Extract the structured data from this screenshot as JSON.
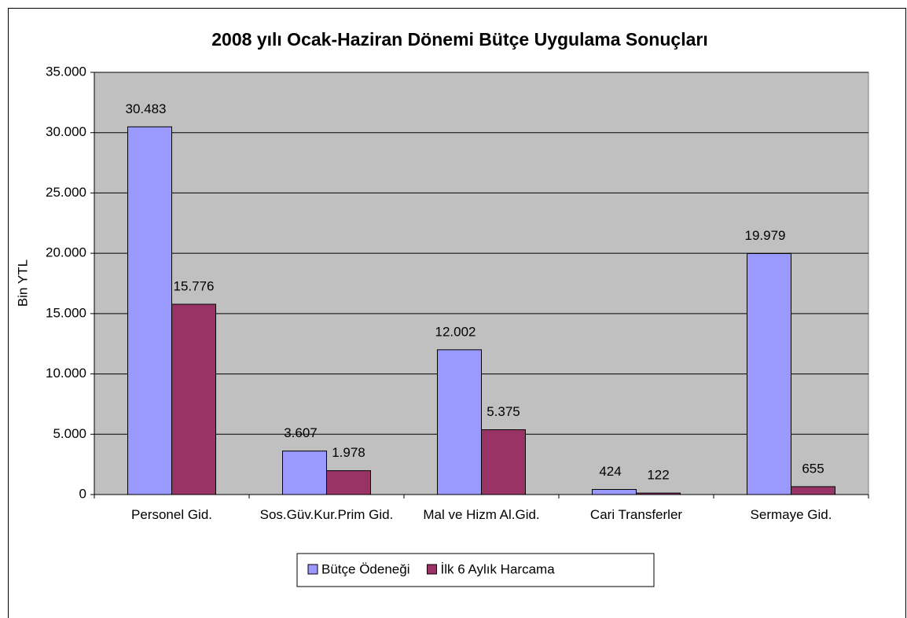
{
  "chart_data": {
    "type": "bar",
    "title": "2008 yılı Ocak-Haziran Dönemi Bütçe Uygulama Sonuçları",
    "y_label": "Bin YTL",
    "categories": [
      "Personel Gid.",
      "Sos.Güv.Kur.Prim Gid.",
      "Mal ve Hizm Al.Gid.",
      "Cari Transferler",
      "Sermaye Gid."
    ],
    "series": [
      {
        "name": "Bütçe Ödeneği",
        "color": "#9999ff",
        "values": [
          30483,
          3607,
          12002,
          424,
          19979
        ],
        "value_labels": [
          "30.483",
          "3.607",
          "12.002",
          "424",
          "19.979"
        ]
      },
      {
        "name": "İlk 6 Aylık Harcama",
        "color": "#993366",
        "values": [
          15776,
          1978,
          5375,
          122,
          655
        ],
        "value_labels": [
          "15.776",
          "1.978",
          "5.375",
          "122",
          "655"
        ]
      }
    ],
    "ylim": [
      0,
      35000
    ],
    "yticks": [
      0,
      {
        "value": 5000,
        "label": "5.000"
      },
      {
        "value": 10000,
        "label": "10.000"
      },
      {
        "value": 15000,
        "label": "15.000"
      },
      {
        "value": 20000,
        "label": "20.000"
      },
      {
        "value": 25000,
        "label": "25.000"
      },
      {
        "value": 30000,
        "label": "30.000"
      },
      {
        "value": 35000,
        "label": "35.000"
      }
    ],
    "grid": true,
    "legend": "bottom",
    "background": "#c0c0c0"
  }
}
